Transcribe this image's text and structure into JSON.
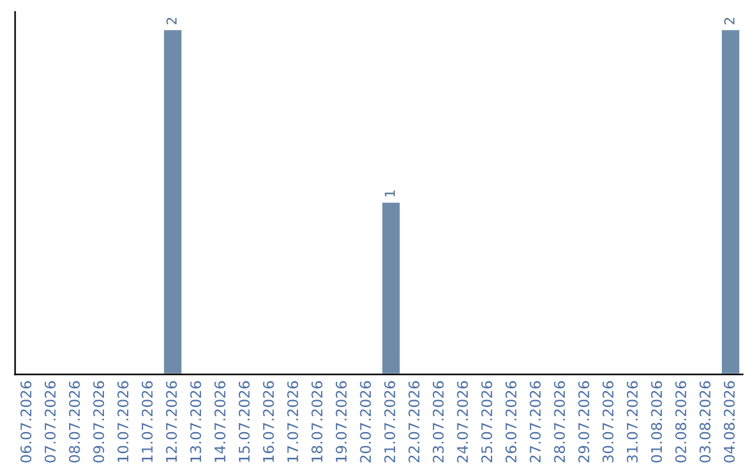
{
  "chart_data": {
    "type": "bar",
    "categories": [
      "06.07.2026",
      "07.07.2026",
      "08.07.2026",
      "09.07.2026",
      "10.07.2026",
      "11.07.2026",
      "12.07.2026",
      "13.07.2026",
      "14.07.2026",
      "15.07.2026",
      "16.07.2026",
      "17.07.2026",
      "18.07.2026",
      "19.07.2026",
      "20.07.2026",
      "21.07.2026",
      "22.07.2026",
      "23.07.2026",
      "24.07.2026",
      "25.07.2026",
      "26.07.2026",
      "27.07.2026",
      "28.07.2026",
      "29.07.2026",
      "30.07.2026",
      "31.07.2026",
      "01.08.2026",
      "02.08.2026",
      "03.08.2026",
      "04.08.2026"
    ],
    "values": [
      0,
      0,
      0,
      0,
      0,
      0,
      2,
      0,
      0,
      0,
      0,
      0,
      0,
      0,
      0,
      1,
      0,
      0,
      0,
      0,
      0,
      0,
      0,
      0,
      0,
      0,
      0,
      0,
      0,
      2
    ],
    "value_labels": [
      null,
      null,
      null,
      null,
      null,
      null,
      "2",
      null,
      null,
      null,
      null,
      null,
      null,
      null,
      null,
      "1",
      null,
      null,
      null,
      null,
      null,
      null,
      null,
      null,
      null,
      null,
      null,
      null,
      null,
      "2"
    ],
    "color": "#6e8caa",
    "ylim": [
      0,
      2.1
    ],
    "tick_labels": "x",
    "grid": false,
    "legend": false
  }
}
